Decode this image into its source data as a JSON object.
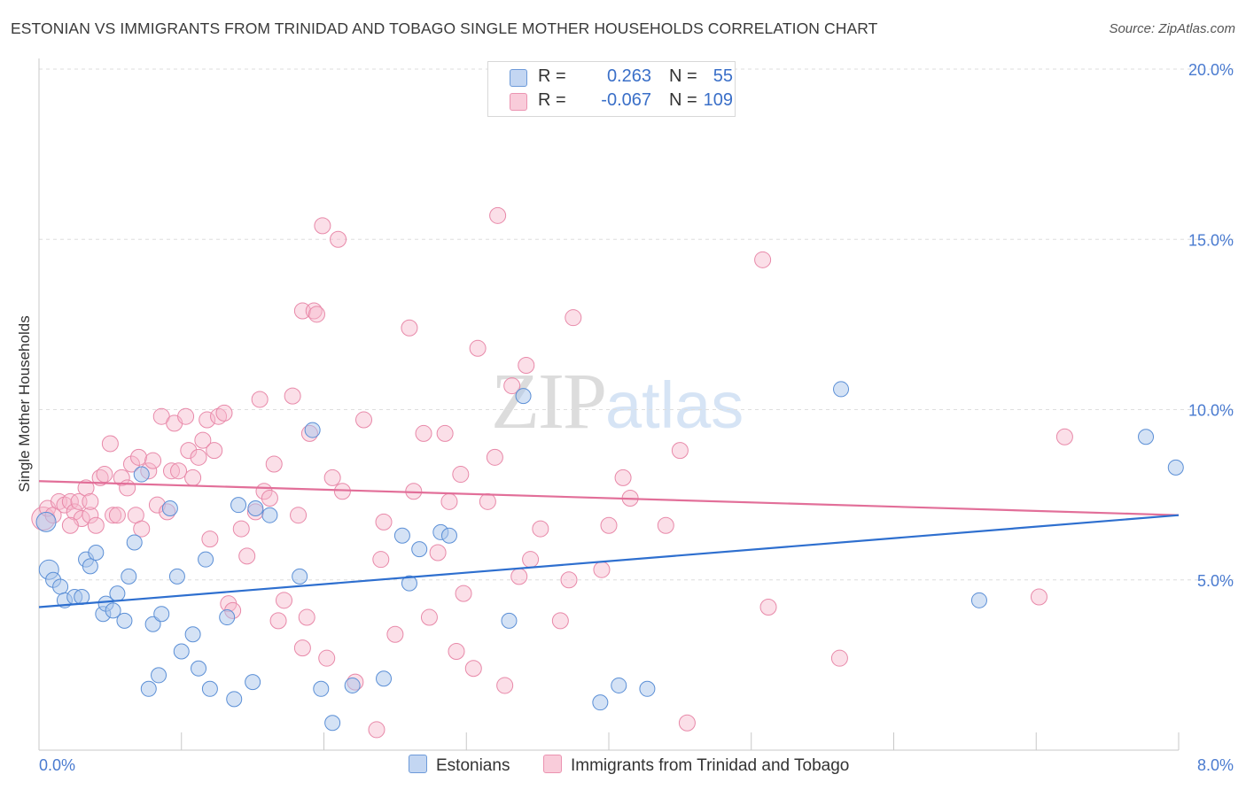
{
  "header": {
    "title": "ESTONIAN VS IMMIGRANTS FROM TRINIDAD AND TOBAGO SINGLE MOTHER HOUSEHOLDS CORRELATION CHART",
    "source": "Source: ZipAtlas.com"
  },
  "watermark": {
    "zip": "ZIP",
    "atlas": "atlas"
  },
  "legend": {
    "r_label": "R =",
    "n_label": "N =",
    "estonians": {
      "r": "0.263",
      "n": "55"
    },
    "trinidad": {
      "r": "-0.067",
      "n": "109"
    }
  },
  "bottom_legend": {
    "estonians": "Estonians",
    "trinidad": "Immigrants from Trinidad and Tobago"
  },
  "colors": {
    "blue_fill": "#a9c6ec",
    "blue_stroke": "#5b8fd6",
    "blue_line": "#2e6fcf",
    "pink_fill": "#f6b8cb",
    "pink_stroke": "#e889a9",
    "pink_line": "#e26f99",
    "grid": "#dedede",
    "tick_label": "#4a7bd0"
  },
  "chart_data": {
    "type": "scatter",
    "title": "ESTONIAN VS IMMIGRANTS FROM TRINIDAD AND TOBAGO SINGLE MOTHER HOUSEHOLDS CORRELATION CHART",
    "xlabel": "",
    "ylabel": "Single Mother Households",
    "xlim": [
      0,
      8
    ],
    "ylim": [
      0,
      20
    ],
    "x_tick_labels": [
      "0.0%",
      "8.0%"
    ],
    "y_ticks": [
      5,
      10,
      15,
      20
    ],
    "y_tick_labels": [
      "5.0%",
      "10.0%",
      "15.0%",
      "20.0%"
    ],
    "grid": "horizontal dashed",
    "legend_position": "top-center",
    "series": [
      {
        "name": "Estonians",
        "color": "#a9c6ec",
        "trend": {
          "x": [
            0,
            8
          ],
          "y": [
            4.2,
            6.9
          ]
        },
        "points": [
          [
            0.05,
            6.7
          ],
          [
            0.07,
            5.3
          ],
          [
            0.1,
            5.0
          ],
          [
            0.15,
            4.8
          ],
          [
            0.18,
            4.4
          ],
          [
            0.25,
            4.5
          ],
          [
            0.3,
            4.5
          ],
          [
            0.33,
            5.6
          ],
          [
            0.36,
            5.4
          ],
          [
            0.4,
            5.8
          ],
          [
            0.45,
            4.0
          ],
          [
            0.47,
            4.3
          ],
          [
            0.52,
            4.1
          ],
          [
            0.55,
            4.6
          ],
          [
            0.6,
            3.8
          ],
          [
            0.63,
            5.1
          ],
          [
            0.67,
            6.1
          ],
          [
            0.72,
            8.1
          ],
          [
            0.77,
            1.8
          ],
          [
            0.8,
            3.7
          ],
          [
            0.84,
            2.2
          ],
          [
            0.86,
            4.0
          ],
          [
            0.92,
            7.1
          ],
          [
            0.97,
            5.1
          ],
          [
            1.0,
            2.9
          ],
          [
            1.08,
            3.4
          ],
          [
            1.12,
            2.4
          ],
          [
            1.17,
            5.6
          ],
          [
            1.2,
            1.8
          ],
          [
            1.32,
            3.9
          ],
          [
            1.37,
            1.5
          ],
          [
            1.4,
            7.2
          ],
          [
            1.5,
            2.0
          ],
          [
            1.52,
            7.1
          ],
          [
            1.62,
            6.9
          ],
          [
            1.83,
            5.1
          ],
          [
            1.92,
            9.4
          ],
          [
            1.98,
            1.8
          ],
          [
            2.06,
            0.8
          ],
          [
            2.2,
            1.9
          ],
          [
            2.42,
            2.1
          ],
          [
            2.55,
            6.3
          ],
          [
            2.6,
            4.9
          ],
          [
            2.67,
            5.9
          ],
          [
            2.82,
            6.4
          ],
          [
            2.88,
            6.3
          ],
          [
            3.3,
            3.8
          ],
          [
            3.4,
            10.4
          ],
          [
            3.94,
            1.4
          ],
          [
            4.07,
            1.9
          ],
          [
            4.27,
            1.8
          ],
          [
            5.63,
            10.6
          ],
          [
            6.6,
            4.4
          ],
          [
            7.77,
            9.2
          ],
          [
            7.98,
            8.3
          ]
        ]
      },
      {
        "name": "Immigrants from Trinidad and Tobago",
        "color": "#f6b8cb",
        "trend": {
          "x": [
            0,
            8
          ],
          "y": [
            7.9,
            6.9
          ]
        },
        "points": [
          [
            0.03,
            6.8
          ],
          [
            0.06,
            7.1
          ],
          [
            0.1,
            6.9
          ],
          [
            0.14,
            7.3
          ],
          [
            0.18,
            7.2
          ],
          [
            0.22,
            7.3
          ],
          [
            0.25,
            7.0
          ],
          [
            0.28,
            7.3
          ],
          [
            0.3,
            6.8
          ],
          [
            0.33,
            7.7
          ],
          [
            0.36,
            6.9
          ],
          [
            0.4,
            6.6
          ],
          [
            0.43,
            8.0
          ],
          [
            0.46,
            8.1
          ],
          [
            0.5,
            9.0
          ],
          [
            0.52,
            6.9
          ],
          [
            0.55,
            6.9
          ],
          [
            0.58,
            8.0
          ],
          [
            0.62,
            7.7
          ],
          [
            0.65,
            8.4
          ],
          [
            0.68,
            6.9
          ],
          [
            0.7,
            8.6
          ],
          [
            0.72,
            6.5
          ],
          [
            0.77,
            8.2
          ],
          [
            0.8,
            8.5
          ],
          [
            0.83,
            7.2
          ],
          [
            0.86,
            9.8
          ],
          [
            0.9,
            7.0
          ],
          [
            0.93,
            8.2
          ],
          [
            0.95,
            9.6
          ],
          [
            0.98,
            8.2
          ],
          [
            1.03,
            9.8
          ],
          [
            1.05,
            8.8
          ],
          [
            1.08,
            8.0
          ],
          [
            1.12,
            8.6
          ],
          [
            1.15,
            9.1
          ],
          [
            1.18,
            9.7
          ],
          [
            1.2,
            6.2
          ],
          [
            1.23,
            8.8
          ],
          [
            1.26,
            9.8
          ],
          [
            1.3,
            9.9
          ],
          [
            1.33,
            4.3
          ],
          [
            1.36,
            4.1
          ],
          [
            1.42,
            6.5
          ],
          [
            1.46,
            5.7
          ],
          [
            1.52,
            7.0
          ],
          [
            1.55,
            10.3
          ],
          [
            1.58,
            7.6
          ],
          [
            1.62,
            7.4
          ],
          [
            1.65,
            8.4
          ],
          [
            1.68,
            3.8
          ],
          [
            1.72,
            4.4
          ],
          [
            1.78,
            10.4
          ],
          [
            1.82,
            6.9
          ],
          [
            1.85,
            12.9
          ],
          [
            1.88,
            3.9
          ],
          [
            1.9,
            9.3
          ],
          [
            1.93,
            12.9
          ],
          [
            1.95,
            12.8
          ],
          [
            1.99,
            15.4
          ],
          [
            2.02,
            2.7
          ],
          [
            2.06,
            8.0
          ],
          [
            2.1,
            15.0
          ],
          [
            2.13,
            7.6
          ],
          [
            2.22,
            2.0
          ],
          [
            2.28,
            9.7
          ],
          [
            2.37,
            0.6
          ],
          [
            2.42,
            6.7
          ],
          [
            2.5,
            3.4
          ],
          [
            2.6,
            12.4
          ],
          [
            2.63,
            7.6
          ],
          [
            2.7,
            9.3
          ],
          [
            2.74,
            3.9
          ],
          [
            2.8,
            5.8
          ],
          [
            2.85,
            9.3
          ],
          [
            2.88,
            7.3
          ],
          [
            2.93,
            2.9
          ],
          [
            2.96,
            8.1
          ],
          [
            3.05,
            2.4
          ],
          [
            3.08,
            11.8
          ],
          [
            3.15,
            7.3
          ],
          [
            3.2,
            8.6
          ],
          [
            3.22,
            15.7
          ],
          [
            3.27,
            1.9
          ],
          [
            3.32,
            10.7
          ],
          [
            3.37,
            5.1
          ],
          [
            3.45,
            5.6
          ],
          [
            3.52,
            6.5
          ],
          [
            3.66,
            3.8
          ],
          [
            3.72,
            5.0
          ],
          [
            3.75,
            12.7
          ],
          [
            3.42,
            11.3
          ],
          [
            3.95,
            5.3
          ],
          [
            4.0,
            6.6
          ],
          [
            4.1,
            8.0
          ],
          [
            4.15,
            7.4
          ],
          [
            4.4,
            6.6
          ],
          [
            4.5,
            8.8
          ],
          [
            4.55,
            0.8
          ],
          [
            5.08,
            14.4
          ],
          [
            5.12,
            4.2
          ],
          [
            5.62,
            2.7
          ],
          [
            7.02,
            4.5
          ],
          [
            7.2,
            9.2
          ],
          [
            2.4,
            5.6
          ],
          [
            1.85,
            3.0
          ],
          [
            0.22,
            6.6
          ],
          [
            0.36,
            7.3
          ],
          [
            2.98,
            4.6
          ]
        ]
      }
    ]
  }
}
